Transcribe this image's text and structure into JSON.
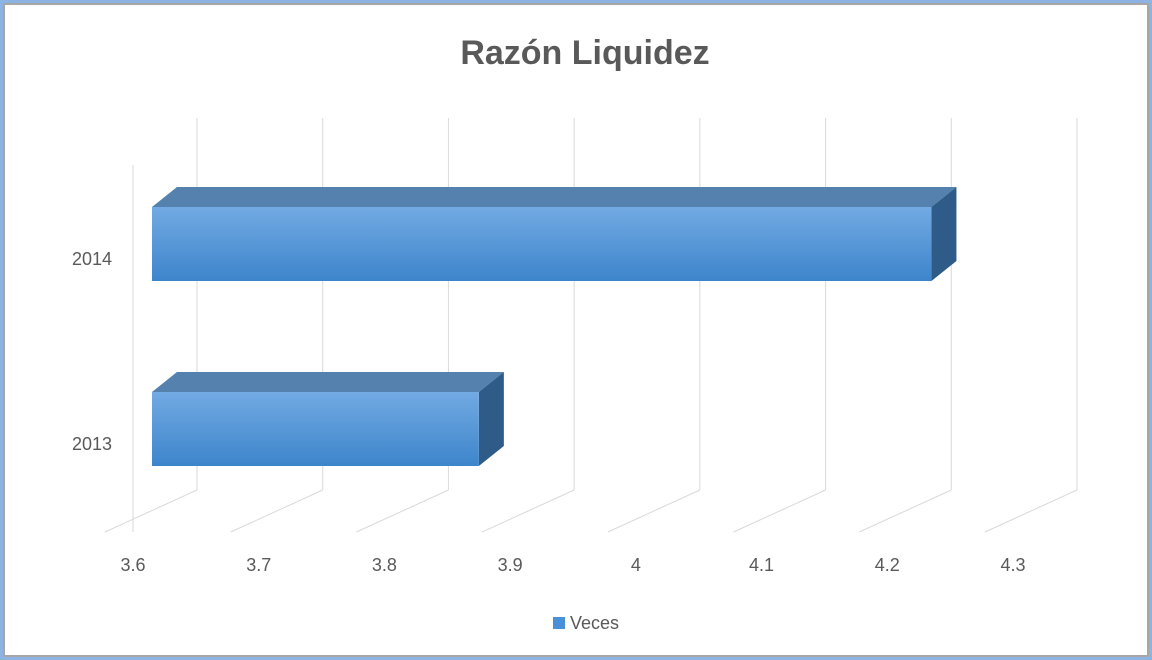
{
  "chart_data": {
    "type": "bar3d_horizontal",
    "title": "Razón Liquidez",
    "categories": [
      "2013",
      "2014"
    ],
    "series": [
      {
        "name": "Veces",
        "color": "#4a90d9",
        "values": [
          3.86,
          4.22
        ]
      }
    ],
    "xlim": [
      3.6,
      4.3
    ],
    "xticks": [
      3.6,
      3.7,
      3.8,
      3.9,
      4,
      4.1,
      4.2,
      4.3
    ],
    "grid": true,
    "legend": "bottom"
  }
}
